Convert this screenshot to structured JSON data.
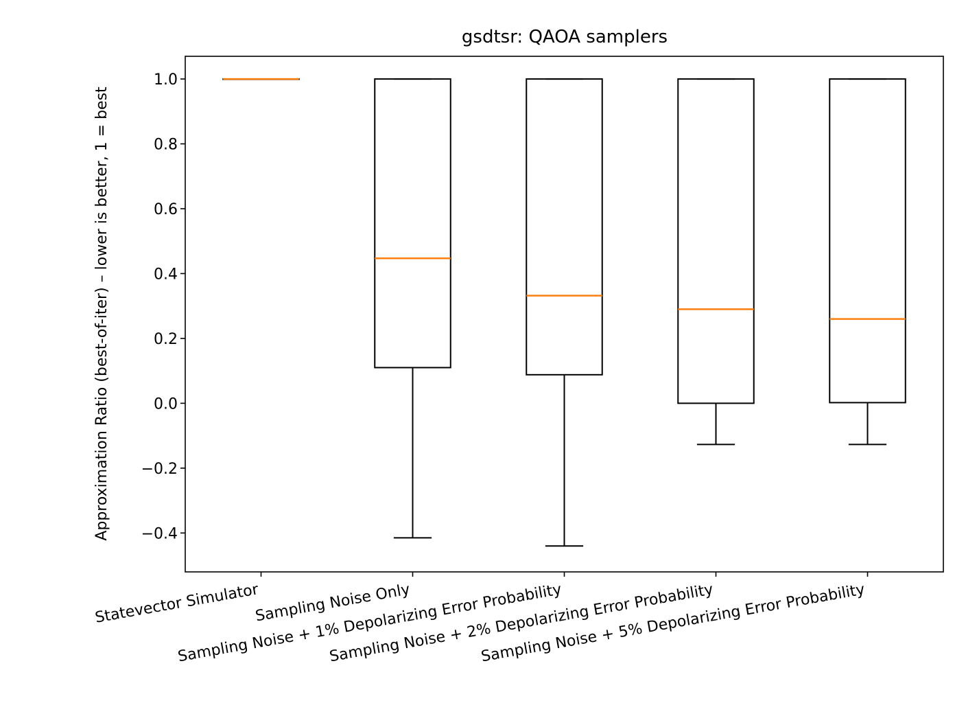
{
  "chart_data": {
    "type": "box",
    "title": "gsdtsr: QAOA samplers",
    "xlabel": "",
    "ylabel": "Approximation Ratio (best-of-iter) – lower is better, 1 = best",
    "ylim": [
      -0.52,
      1.07
    ],
    "yticks": [
      -0.4,
      -0.2,
      0.0,
      0.2,
      0.4,
      0.6,
      0.8,
      1.0
    ],
    "ytick_labels": [
      "−0.4",
      "−0.2",
      "0.0",
      "0.2",
      "0.4",
      "0.6",
      "0.8",
      "1.0"
    ],
    "grid": false,
    "categories": [
      "Statevector Simulator",
      "Sampling Noise Only",
      "Sampling Noise + 1% Depolarizing Error Probability",
      "Sampling Noise + 2% Depolarizing Error Probability",
      "Sampling Noise + 5% Depolarizing Error Probability"
    ],
    "boxes": [
      {
        "whislo": 1.0,
        "q1": 1.0,
        "med": 1.0,
        "q3": 1.0,
        "whishi": 1.0
      },
      {
        "whislo": -0.415,
        "q1": 0.11,
        "med": 0.447,
        "q3": 1.0,
        "whishi": 1.0
      },
      {
        "whislo": -0.44,
        "q1": 0.088,
        "med": 0.332,
        "q3": 1.0,
        "whishi": 1.0
      },
      {
        "whislo": -0.127,
        "q1": 0.0,
        "med": 0.29,
        "q3": 1.0,
        "whishi": 1.0
      },
      {
        "whislo": -0.127,
        "q1": 0.002,
        "med": 0.26,
        "q3": 1.0,
        "whishi": 1.0
      }
    ],
    "colors": {
      "box": "#000000",
      "median": "#ff7f0e"
    }
  }
}
